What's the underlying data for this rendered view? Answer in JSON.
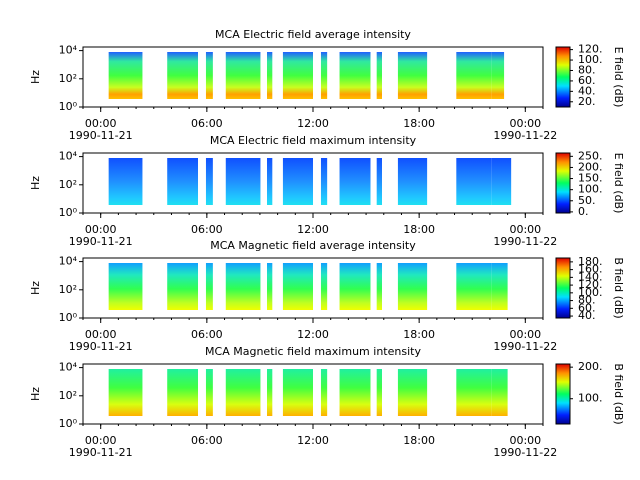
{
  "chart_data": [
    {
      "type": "spectrogram",
      "title": "MCA  Electric field average intensity",
      "ylabel": "Hz",
      "log_y": true,
      "ylim": [
        1,
        18000
      ],
      "yticks": [
        {
          "value": 1,
          "label": "10⁰"
        },
        {
          "value": 100,
          "label": "10²"
        },
        {
          "value": 10000,
          "label": "10⁴"
        }
      ],
      "xlim": [
        -1,
        25
      ],
      "xticks": [
        {
          "value": 0,
          "label": "00:00"
        },
        {
          "value": 6,
          "label": "06:00"
        },
        {
          "value": 12,
          "label": "12:00"
        },
        {
          "value": 18,
          "label": "18:00"
        },
        {
          "value": 24,
          "label": "00:00"
        }
      ],
      "xtick_dates": [
        {
          "value": 0,
          "label": "1990-11-21"
        },
        {
          "value": 24,
          "label": "1990-11-22"
        }
      ],
      "segments": [
        [
          0.45,
          2.36
        ],
        [
          3.76,
          5.5
        ],
        [
          5.95,
          6.34
        ],
        [
          7.07,
          9.03
        ],
        [
          9.4,
          9.7
        ],
        [
          10.3,
          12.0
        ],
        [
          12.45,
          12.8
        ],
        [
          13.5,
          15.25
        ],
        [
          15.6,
          15.9
        ],
        [
          16.8,
          18.45
        ],
        [
          20.1,
          22.1
        ],
        [
          22.1,
          22.8
        ]
      ],
      "colorbar_label": "E field (dB)",
      "zlim": [
        10,
        125
      ],
      "zticks": [
        {
          "value": 20,
          "label": "20."
        },
        {
          "value": 40,
          "label": "40."
        },
        {
          "value": 60,
          "label": "60."
        },
        {
          "value": 80,
          "label": "80."
        },
        {
          "value": 100,
          "label": "100."
        },
        {
          "value": 120,
          "label": "120."
        }
      ]
    },
    {
      "type": "spectrogram",
      "title": "MCA  Electric field maximum intensity",
      "ylabel": "Hz",
      "log_y": true,
      "ylim": [
        1,
        18000
      ],
      "yticks": [
        {
          "value": 1,
          "label": "10⁰"
        },
        {
          "value": 100,
          "label": "10²"
        },
        {
          "value": 10000,
          "label": "10⁴"
        }
      ],
      "xlim": [
        -1,
        25
      ],
      "xticks": [
        {
          "value": 0,
          "label": "00:00"
        },
        {
          "value": 6,
          "label": "06:00"
        },
        {
          "value": 12,
          "label": "12:00"
        },
        {
          "value": 18,
          "label": "18:00"
        },
        {
          "value": 24,
          "label": "00:00"
        }
      ],
      "xtick_dates": [
        {
          "value": 0,
          "label": "1990-11-21"
        },
        {
          "value": 24,
          "label": "1990-11-22"
        }
      ],
      "segments": [
        [
          0.45,
          2.36
        ],
        [
          3.76,
          5.5
        ],
        [
          5.95,
          6.34
        ],
        [
          7.07,
          9.03
        ],
        [
          9.4,
          9.7
        ],
        [
          10.3,
          12.0
        ],
        [
          12.45,
          12.8
        ],
        [
          13.5,
          15.25
        ],
        [
          15.6,
          15.9
        ],
        [
          16.8,
          18.45
        ],
        [
          20.1,
          22.1
        ],
        [
          22.1,
          23.2
        ]
      ],
      "colorbar_label": "E field (dB)",
      "zlim": [
        -5,
        265
      ],
      "zticks": [
        {
          "value": 0,
          "label": "0."
        },
        {
          "value": 50,
          "label": "50."
        },
        {
          "value": 100,
          "label": "100."
        },
        {
          "value": 150,
          "label": "150."
        },
        {
          "value": 200,
          "label": "200."
        },
        {
          "value": 250,
          "label": "250."
        }
      ]
    },
    {
      "type": "spectrogram",
      "title": "MCA  Magnetic field average intensity",
      "ylabel": "Hz",
      "log_y": true,
      "ylim": [
        1,
        18000
      ],
      "yticks": [
        {
          "value": 1,
          "label": "10⁰"
        },
        {
          "value": 100,
          "label": "10²"
        },
        {
          "value": 10000,
          "label": "10⁴"
        }
      ],
      "xlim": [
        -1,
        25
      ],
      "xticks": [
        {
          "value": 0,
          "label": "00:00"
        },
        {
          "value": 6,
          "label": "06:00"
        },
        {
          "value": 12,
          "label": "12:00"
        },
        {
          "value": 18,
          "label": "18:00"
        },
        {
          "value": 24,
          "label": "00:00"
        }
      ],
      "xtick_dates": [
        {
          "value": 0,
          "label": "1990-11-21"
        },
        {
          "value": 24,
          "label": "1990-11-22"
        }
      ],
      "segments": [
        [
          0.45,
          2.36
        ],
        [
          3.76,
          5.5
        ],
        [
          5.95,
          6.34
        ],
        [
          7.07,
          9.03
        ],
        [
          9.4,
          9.7
        ],
        [
          10.3,
          12.0
        ],
        [
          12.45,
          12.8
        ],
        [
          13.5,
          15.25
        ],
        [
          15.6,
          15.9
        ],
        [
          16.8,
          18.45
        ],
        [
          20.1,
          22.1
        ],
        [
          22.1,
          23.0
        ]
      ],
      "colorbar_label": "B field (dB)",
      "zlim": [
        35,
        190
      ],
      "zticks": [
        {
          "value": 40,
          "label": "40."
        },
        {
          "value": 60,
          "label": "60."
        },
        {
          "value": 80,
          "label": "80."
        },
        {
          "value": 100,
          "label": "100."
        },
        {
          "value": 120,
          "label": "120."
        },
        {
          "value": 140,
          "label": "140."
        },
        {
          "value": 160,
          "label": "160."
        },
        {
          "value": 180,
          "label": "180."
        }
      ]
    },
    {
      "type": "spectrogram",
      "title": "MCA  Magnetic field maximum intensity",
      "ylabel": "Hz",
      "log_y": true,
      "ylim": [
        1,
        18000
      ],
      "yticks": [
        {
          "value": 1,
          "label": "10⁰"
        },
        {
          "value": 100,
          "label": "10²"
        },
        {
          "value": 10000,
          "label": "10⁴"
        }
      ],
      "xlim": [
        -1,
        25
      ],
      "xticks": [
        {
          "value": 0,
          "label": "00:00"
        },
        {
          "value": 6,
          "label": "06:00"
        },
        {
          "value": 12,
          "label": "12:00"
        },
        {
          "value": 18,
          "label": "18:00"
        },
        {
          "value": 24,
          "label": "00:00"
        }
      ],
      "xtick_dates": [
        {
          "value": 0,
          "label": "1990-11-21"
        },
        {
          "value": 24,
          "label": "1990-11-22"
        }
      ],
      "segments": [
        [
          0.45,
          2.36
        ],
        [
          3.76,
          5.5
        ],
        [
          5.95,
          6.34
        ],
        [
          7.07,
          9.03
        ],
        [
          9.4,
          9.7
        ],
        [
          10.3,
          12.0
        ],
        [
          12.45,
          12.8
        ],
        [
          13.5,
          15.25
        ],
        [
          15.6,
          15.9
        ],
        [
          16.8,
          18.45
        ],
        [
          20.1,
          22.1
        ],
        [
          22.1,
          23.0
        ]
      ],
      "colorbar_label": "B field (dB)",
      "zlim": [
        20,
        210
      ],
      "zticks": [
        {
          "value": 100,
          "label": "100."
        },
        {
          "value": 200,
          "label": "200."
        }
      ]
    }
  ]
}
